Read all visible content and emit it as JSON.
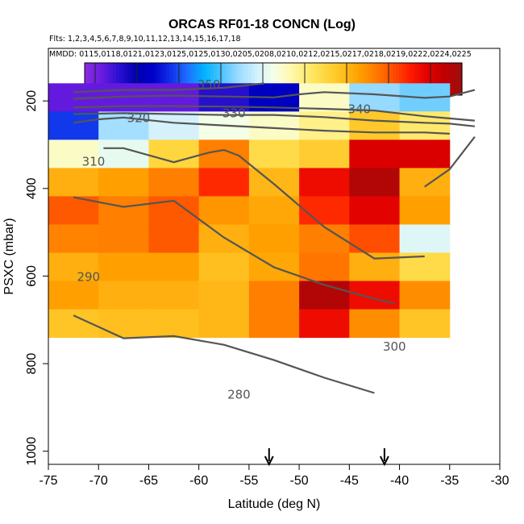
{
  "chart_data": {
    "type": "heatmap",
    "title": "ORCAS RF01-18 CONCN (Log)",
    "flights_label": "Flts: 1,2,3,4,5,6,7,8,9,10,11,12,13,14,15,16,17,18",
    "dates_label": "MMDD: 0115,0118,0121,0123,0125,0125,0130,0205,0208,0210,0212,0215,0217,0218,0219,0222,0224,0225",
    "xlabel": "Latitude (deg N)",
    "ylabel": "PSXC (mbar)",
    "xlim": [
      -75,
      -30
    ],
    "ylim": [
      1030,
      80
    ],
    "xticks": [
      -75,
      -70,
      -65,
      -60,
      -55,
      -50,
      -45,
      -40,
      -35,
      -30
    ],
    "yticks": [
      200,
      400,
      600,
      800,
      1000
    ],
    "colorbar": {
      "min": 1.55,
      "max": 3.35,
      "ticks": [
        1.6,
        1.8,
        2.0,
        2.2,
        2.4,
        2.6,
        2.8,
        3.0,
        3.2
      ],
      "colors": [
        "#8a2be2",
        "#6a1be0",
        "#2a10d0",
        "#0000b0",
        "#0000c8",
        "#1030e8",
        "#1e6fff",
        "#00b4ff",
        "#4fc3ff",
        "#9cdcff",
        "#d0f0ff",
        "#f4ffe8",
        "#fff8b0",
        "#ffeb70",
        "#ffd740",
        "#ffc020",
        "#ff9f00",
        "#ff7a00",
        "#ff4c00",
        "#ff1a00",
        "#e00000",
        "#c00000",
        "#9b0f0f"
      ]
    },
    "cell_width_deg": 5,
    "cell_height_mbar": 64.5,
    "cells": [
      {
        "lat": -72.5,
        "p": 192,
        "v": 1.64
      },
      {
        "lat": -67.5,
        "p": 192,
        "v": 1.64
      },
      {
        "lat": -62.5,
        "p": 192,
        "v": 1.64
      },
      {
        "lat": -57.5,
        "p": 192,
        "v": 1.72
      },
      {
        "lat": -52.5,
        "p": 192,
        "v": 1.85
      },
      {
        "lat": -47.5,
        "p": 192,
        "v": 2.5
      },
      {
        "lat": -42.5,
        "p": 192,
        "v": 2.28
      },
      {
        "lat": -37.5,
        "p": 192,
        "v": 2.24
      },
      {
        "lat": -72.5,
        "p": 256.5,
        "v": 1.97
      },
      {
        "lat": -67.5,
        "p": 256.5,
        "v": 2.3
      },
      {
        "lat": -62.5,
        "p": 256.5,
        "v": 2.38
      },
      {
        "lat": -57.5,
        "p": 256.5,
        "v": 2.45
      },
      {
        "lat": -52.5,
        "p": 256.5,
        "v": 2.5
      },
      {
        "lat": -47.5,
        "p": 256.5,
        "v": 2.58
      },
      {
        "lat": -42.5,
        "p": 256.5,
        "v": 2.75
      },
      {
        "lat": -37.5,
        "p": 256.5,
        "v": 2.62
      },
      {
        "lat": -72.5,
        "p": 321,
        "v": 2.5
      },
      {
        "lat": -67.5,
        "p": 321,
        "v": 2.42
      },
      {
        "lat": -62.5,
        "p": 321,
        "v": 2.7
      },
      {
        "lat": -57.5,
        "p": 321,
        "v": 2.93
      },
      {
        "lat": -52.5,
        "p": 321,
        "v": 2.68
      },
      {
        "lat": -47.5,
        "p": 321,
        "v": 2.73
      },
      {
        "lat": -42.5,
        "p": 321,
        "v": 3.2
      },
      {
        "lat": -37.5,
        "p": 321,
        "v": 3.2
      },
      {
        "lat": -72.5,
        "p": 385.5,
        "v": 2.82
      },
      {
        "lat": -67.5,
        "p": 385.5,
        "v": 2.86
      },
      {
        "lat": -62.5,
        "p": 385.5,
        "v": 2.93
      },
      {
        "lat": -57.5,
        "p": 385.5,
        "v": 3.08
      },
      {
        "lat": -52.5,
        "p": 385.5,
        "v": 2.8
      },
      {
        "lat": -47.5,
        "p": 385.5,
        "v": 3.15
      },
      {
        "lat": -42.5,
        "p": 385.5,
        "v": 3.3
      },
      {
        "lat": -37.5,
        "p": 385.5,
        "v": 2.82
      },
      {
        "lat": -72.5,
        "p": 450,
        "v": 3.0
      },
      {
        "lat": -67.5,
        "p": 450,
        "v": 2.93
      },
      {
        "lat": -62.5,
        "p": 450,
        "v": 3.0
      },
      {
        "lat": -57.5,
        "p": 450,
        "v": 2.88
      },
      {
        "lat": -52.5,
        "p": 450,
        "v": 2.84
      },
      {
        "lat": -47.5,
        "p": 450,
        "v": 3.08
      },
      {
        "lat": -42.5,
        "p": 450,
        "v": 3.18
      },
      {
        "lat": -37.5,
        "p": 450,
        "v": 2.86
      },
      {
        "lat": -72.5,
        "p": 514.5,
        "v": 2.92
      },
      {
        "lat": -67.5,
        "p": 514.5,
        "v": 2.93
      },
      {
        "lat": -62.5,
        "p": 514.5,
        "v": 3.0
      },
      {
        "lat": -57.5,
        "p": 514.5,
        "v": 2.82
      },
      {
        "lat": -52.5,
        "p": 514.5,
        "v": 2.86
      },
      {
        "lat": -47.5,
        "p": 514.5,
        "v": 2.93
      },
      {
        "lat": -42.5,
        "p": 514.5,
        "v": 3.02
      },
      {
        "lat": -37.5,
        "p": 514.5,
        "v": 2.4
      },
      {
        "lat": -72.5,
        "p": 579,
        "v": 2.82
      },
      {
        "lat": -67.5,
        "p": 579,
        "v": 2.86
      },
      {
        "lat": -62.5,
        "p": 579,
        "v": 2.86
      },
      {
        "lat": -57.5,
        "p": 579,
        "v": 2.78
      },
      {
        "lat": -52.5,
        "p": 579,
        "v": 2.84
      },
      {
        "lat": -47.5,
        "p": 579,
        "v": 2.95
      },
      {
        "lat": -42.5,
        "p": 579,
        "v": 2.82
      },
      {
        "lat": -37.5,
        "p": 579,
        "v": 2.68
      },
      {
        "lat": -72.5,
        "p": 643.5,
        "v": 2.86
      },
      {
        "lat": -67.5,
        "p": 643.5,
        "v": 2.82
      },
      {
        "lat": -62.5,
        "p": 643.5,
        "v": 2.82
      },
      {
        "lat": -57.5,
        "p": 643.5,
        "v": 2.8
      },
      {
        "lat": -52.5,
        "p": 643.5,
        "v": 2.93
      },
      {
        "lat": -47.5,
        "p": 643.5,
        "v": 3.3
      },
      {
        "lat": -42.5,
        "p": 643.5,
        "v": 3.15
      },
      {
        "lat": -37.5,
        "p": 643.5,
        "v": 2.9
      },
      {
        "lat": -72.5,
        "p": 708,
        "v": 2.76
      },
      {
        "lat": -67.5,
        "p": 708,
        "v": 2.78
      },
      {
        "lat": -62.5,
        "p": 708,
        "v": 2.78
      },
      {
        "lat": -57.5,
        "p": 708,
        "v": 2.8
      },
      {
        "lat": -52.5,
        "p": 708,
        "v": 2.93
      },
      {
        "lat": -47.5,
        "p": 708,
        "v": 3.15
      },
      {
        "lat": -42.5,
        "p": 708,
        "v": 2.9
      },
      {
        "lat": -37.5,
        "p": 708,
        "v": 2.76
      }
    ],
    "contours": [
      {
        "label": "350",
        "points": [
          [
            -72.5,
            180
          ],
          [
            -67.5,
            175
          ],
          [
            -62.5,
            175
          ],
          [
            -57.5,
            170
          ],
          [
            -53.5,
            160
          ]
        ]
      },
      {
        "label": "340",
        "points": [
          [
            -72.5,
            195
          ],
          [
            -67.5,
            190
          ],
          [
            -62.5,
            188
          ],
          [
            -57.5,
            190
          ],
          [
            -52.5,
            192
          ],
          [
            -50,
            185
          ],
          [
            -47.5,
            180
          ],
          [
            -42.5,
            185
          ],
          [
            -37.5,
            193
          ],
          [
            -35,
            190
          ],
          [
            -32.5,
            175
          ]
        ]
      },
      {
        "label": "330",
        "points": [
          [
            -72.5,
            215
          ],
          [
            -67.5,
            212
          ],
          [
            -62.5,
            212
          ],
          [
            -57.5,
            213
          ],
          [
            -52.5,
            215
          ],
          [
            -47.5,
            218
          ],
          [
            -42.5,
            222
          ],
          [
            -37.5,
            235
          ],
          [
            -35,
            240
          ],
          [
            -32.5,
            245
          ]
        ]
      },
      {
        "label": "320",
        "points": [
          [
            -72.5,
            230
          ],
          [
            -67.5,
            228
          ],
          [
            -62.5,
            230
          ],
          [
            -57.5,
            232
          ],
          [
            -52.5,
            232
          ],
          [
            -47.5,
            237
          ],
          [
            -42.5,
            245
          ],
          [
            -37.5,
            250
          ],
          [
            -35,
            252
          ],
          [
            -32.5,
            258
          ]
        ]
      },
      {
        "label": "310",
        "points": [
          [
            -72.5,
            250
          ],
          [
            -70,
            242
          ],
          [
            -67.5,
            238
          ],
          [
            -62.5,
            250
          ],
          [
            -57.5,
            256
          ],
          [
            -52.5,
            262
          ],
          [
            -47.5,
            268
          ],
          [
            -42.5,
            272
          ],
          [
            -37.5,
            272
          ],
          [
            -35,
            275
          ]
        ]
      },
      {
        "label": "300",
        "points": [
          [
            -69.5,
            308
          ],
          [
            -67.5,
            308
          ],
          [
            -62.5,
            340
          ],
          [
            -59,
            318
          ],
          [
            -57.5,
            312
          ],
          [
            -56,
            325
          ],
          [
            -52.5,
            390
          ],
          [
            -47.5,
            488
          ],
          [
            -42.5,
            560
          ],
          [
            -37.5,
            555
          ]
        ]
      },
      {
        "label": "290",
        "points": [
          [
            -72.5,
            420
          ],
          [
            -67.5,
            442
          ],
          [
            -62.5,
            428
          ],
          [
            -57.5,
            512
          ],
          [
            -52.5,
            580
          ],
          [
            -47.5,
            620
          ],
          [
            -42.5,
            652
          ],
          [
            -40.5,
            662
          ]
        ]
      },
      {
        "label": "280",
        "points": [
          [
            -72.5,
            690
          ],
          [
            -67.5,
            742
          ],
          [
            -62.5,
            737
          ],
          [
            -57.5,
            757
          ],
          [
            -52.5,
            792
          ],
          [
            -47.5,
            832
          ],
          [
            -42.5,
            867
          ]
        ]
      }
    ],
    "contours_alt": [
      {
        "label": "300-b",
        "points": [
          [
            -37.5,
            396
          ],
          [
            -35,
            356
          ],
          [
            -32.5,
            282
          ]
        ]
      }
    ],
    "markers": [
      -53,
      -41.5
    ],
    "contour_label_positions": [
      {
        "text": "350",
        "lat": -59,
        "p": 172
      },
      {
        "text": "340",
        "lat": -44,
        "p": 228
      },
      {
        "text": "330",
        "lat": -56.5,
        "p": 237
      },
      {
        "text": "320",
        "lat": -66,
        "p": 248
      },
      {
        "text": "310",
        "lat": -70.5,
        "p": 348
      },
      {
        "text": "290",
        "lat": -71,
        "p": 611
      },
      {
        "text": "300",
        "lat": -40.5,
        "p": 770
      },
      {
        "text": "280",
        "lat": -56,
        "p": 880
      }
    ]
  }
}
